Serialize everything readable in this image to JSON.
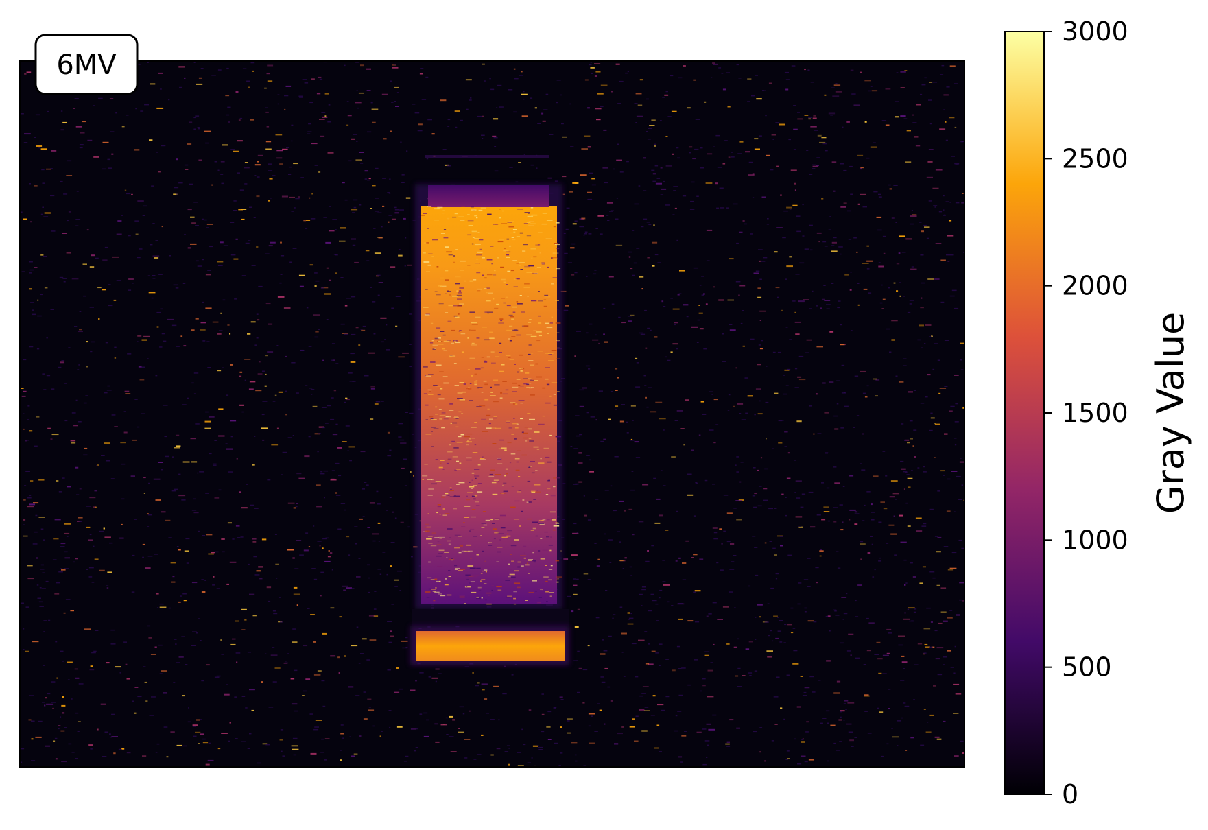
{
  "chart_data": {
    "type": "heatmap",
    "title": "",
    "panel_label": "6MV",
    "colormap": "inferno",
    "colorbar": {
      "label": "Gray Value",
      "range": [
        0,
        3000
      ],
      "ticks": [
        0,
        500,
        1000,
        1500,
        2000,
        2500,
        3000
      ],
      "tick_labels": [
        "0",
        "500",
        "1000",
        "1500",
        "2000",
        "2500",
        "3000"
      ]
    },
    "axes_visible": false,
    "background_level": 60,
    "field_regions": [
      {
        "name": "main field",
        "peak_value": 2500,
        "bottom_value": 1100
      },
      {
        "name": "lower strip",
        "peak_value": 2450
      }
    ],
    "colors": {
      "inferno_stops": [
        "#000004",
        "#420a68",
        "#932667",
        "#dd513a",
        "#fca50a",
        "#fcffa4"
      ]
    }
  }
}
